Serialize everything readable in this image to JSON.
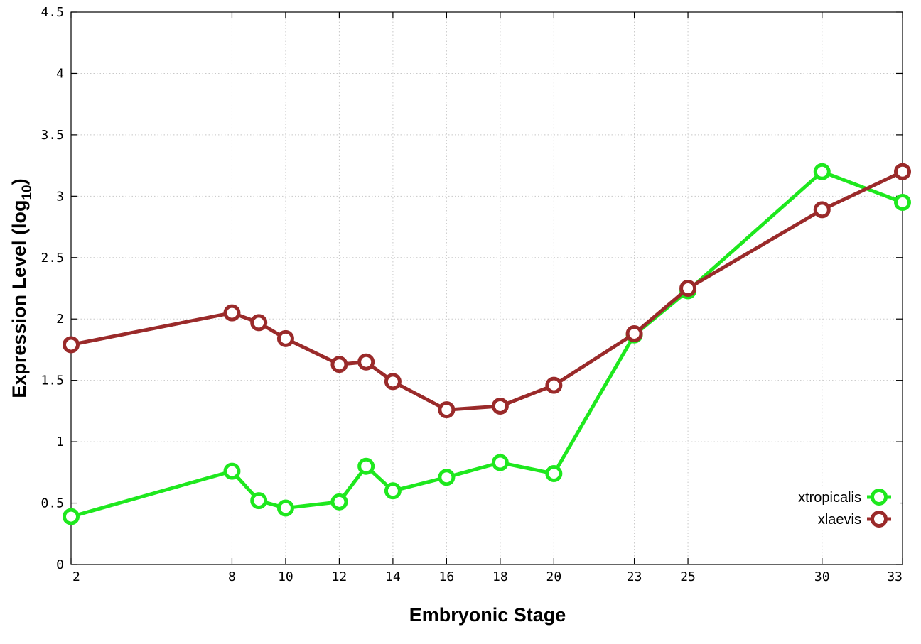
{
  "chart_data": {
    "type": "line",
    "title": "",
    "xlabel": "Embryonic Stage",
    "ylabel_main": "Expression Level (log",
    "ylabel_sub": "10",
    "ylabel_close": ")",
    "x": [
      2,
      8,
      9,
      10,
      12,
      13,
      14,
      16,
      18,
      20,
      23,
      25,
      30,
      33
    ],
    "xticks": [
      "2",
      "8",
      "10",
      "12",
      "14",
      "16",
      "18",
      "20",
      "23",
      "25",
      "30",
      "33"
    ],
    "yticks": [
      "0",
      "0.5",
      "1",
      "1.5",
      "2",
      "2.5",
      "3",
      "3.5",
      "4",
      "4.5"
    ],
    "xlim": [
      2,
      33
    ],
    "ylim": [
      0,
      4.5
    ],
    "grid": true,
    "legend_position": "bottom-right",
    "series": [
      {
        "name": "xtropicalis",
        "color": "#1ee81e",
        "values": [
          0.39,
          0.76,
          0.52,
          0.46,
          0.51,
          0.8,
          0.6,
          0.71,
          0.83,
          0.74,
          1.87,
          2.23,
          3.2,
          2.95
        ]
      },
      {
        "name": "xlaevis",
        "color": "#9a2a2a",
        "values": [
          1.79,
          2.05,
          1.97,
          1.84,
          1.63,
          1.65,
          1.49,
          1.26,
          1.29,
          1.46,
          1.88,
          2.25,
          2.89,
          3.2
        ]
      }
    ]
  }
}
